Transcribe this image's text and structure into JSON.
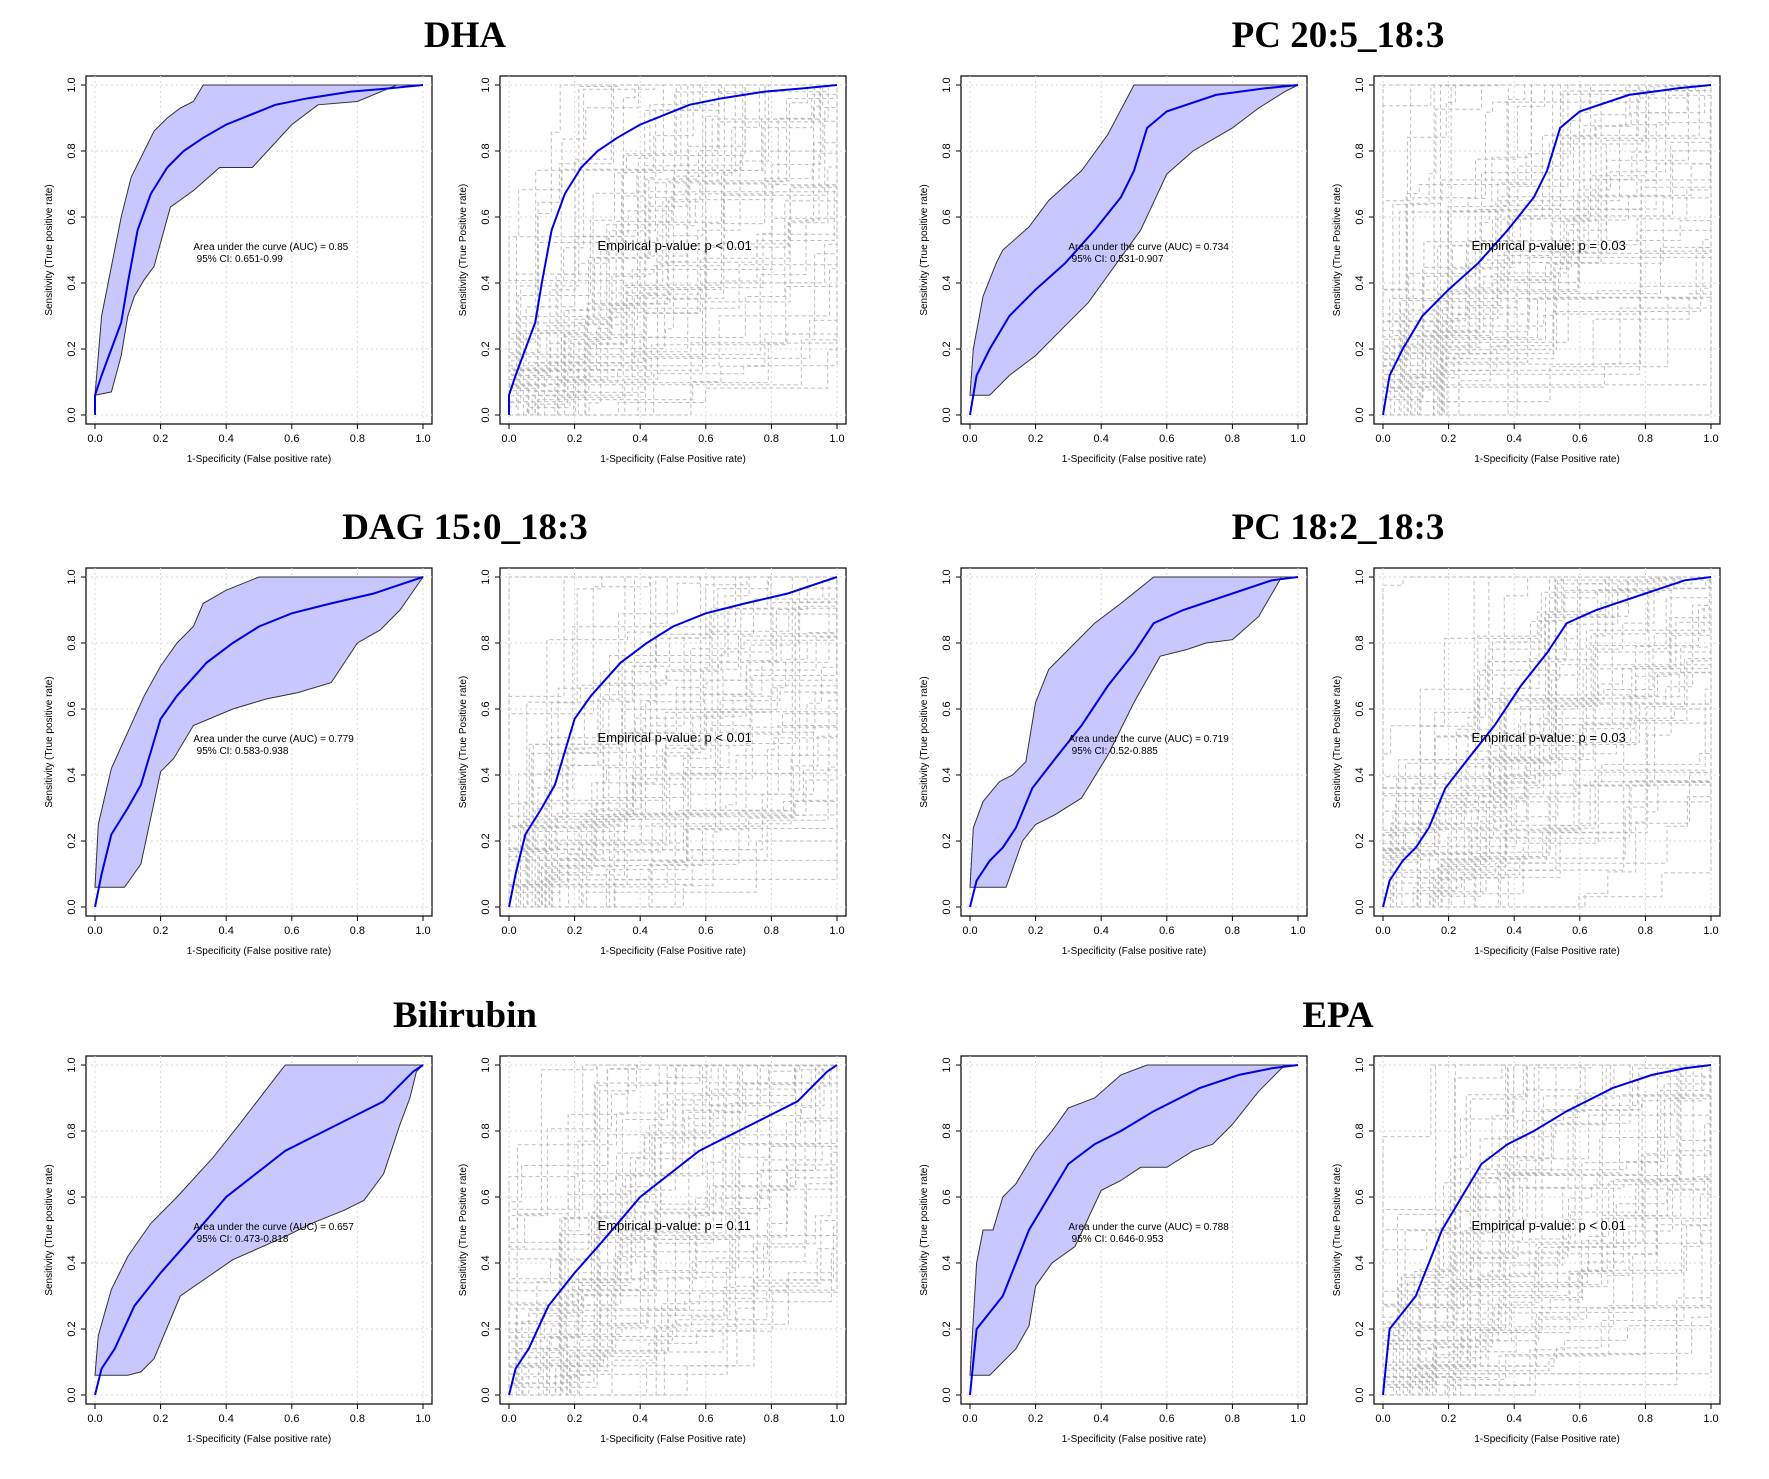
{
  "figure": {
    "axes_text": {
      "roc_ylabel": "Sensitivity (True positive rate)",
      "roc_xlabel": "1-Specificity (False positive rate)",
      "perm_ylabel": "Sensitivity (True Positive rate)",
      "perm_xlabel": "1-Specificity (False Positive rate)",
      "ticks": [
        "0.0",
        "0.2",
        "0.4",
        "0.6",
        "0.8",
        "1.0"
      ]
    },
    "colors": {
      "curve": "#0000e6",
      "band": "#c8c8ff",
      "band_edge": "#333333",
      "perm": "#b4b4b4",
      "grid": "#d9d9d9"
    }
  },
  "groups": [
    {
      "title": "DHA"
    },
    {
      "title": "PC 20:5_18:3"
    },
    {
      "title": "DAG 15:0_18:3"
    },
    {
      "title": "PC 18:2_18:3"
    },
    {
      "title": "Bilirubin"
    },
    {
      "title": "EPA"
    }
  ],
  "chart_data": [
    {
      "type": "line",
      "metabolite": "DHA",
      "roc": {
        "auc_text": "Area under the curve (AUC) = 0.85",
        "ci_text": "95% CI: 0.651-0.99",
        "fpr": [
          0,
          0,
          0.02,
          0.05,
          0.08,
          0.1,
          0.13,
          0.17,
          0.22,
          0.27,
          0.33,
          0.4,
          0.5,
          0.55,
          0.65,
          0.78,
          0.9,
          1.0
        ],
        "tpr": [
          0,
          0.06,
          0.12,
          0.2,
          0.28,
          0.4,
          0.56,
          0.67,
          0.75,
          0.8,
          0.84,
          0.88,
          0.92,
          0.94,
          0.96,
          0.98,
          0.99,
          1.0
        ],
        "ci_upper": [
          [
            0,
            0.06
          ],
          [
            0.02,
            0.3
          ],
          [
            0.05,
            0.45
          ],
          [
            0.08,
            0.6
          ],
          [
            0.11,
            0.72
          ],
          [
            0.15,
            0.8
          ],
          [
            0.18,
            0.86
          ],
          [
            0.22,
            0.9
          ],
          [
            0.26,
            0.93
          ],
          [
            0.3,
            0.95
          ],
          [
            0.33,
            1.0
          ],
          [
            1.0,
            1.0
          ]
        ],
        "ci_lower": [
          [
            0,
            0.06
          ],
          [
            0.05,
            0.07
          ],
          [
            0.08,
            0.18
          ],
          [
            0.1,
            0.3
          ],
          [
            0.12,
            0.36
          ],
          [
            0.15,
            0.41
          ],
          [
            0.18,
            0.45
          ],
          [
            0.23,
            0.63
          ],
          [
            0.3,
            0.68
          ],
          [
            0.38,
            0.75
          ],
          [
            0.48,
            0.75
          ],
          [
            0.6,
            0.88
          ],
          [
            0.68,
            0.94
          ],
          [
            0.8,
            0.95
          ],
          [
            0.92,
            1.0
          ],
          [
            1.0,
            1.0
          ]
        ]
      },
      "permutation": {
        "pvalue_text": "Empirical p-value:  p < 0.01"
      }
    },
    {
      "type": "line",
      "metabolite": "PC 20:5_18:3",
      "roc": {
        "auc_text": "Area under the curve (AUC) = 0.734",
        "ci_text": "95% CI: 0.531-0.907",
        "fpr": [
          0,
          0.02,
          0.06,
          0.12,
          0.2,
          0.29,
          0.38,
          0.46,
          0.5,
          0.54,
          0.6,
          0.75,
          0.9,
          1.0
        ],
        "tpr": [
          0,
          0.12,
          0.2,
          0.3,
          0.38,
          0.46,
          0.56,
          0.66,
          0.74,
          0.87,
          0.92,
          0.97,
          0.99,
          1.0
        ],
        "ci_upper": [
          [
            0,
            0.06
          ],
          [
            0.01,
            0.2
          ],
          [
            0.04,
            0.36
          ],
          [
            0.08,
            0.46
          ],
          [
            0.1,
            0.5
          ],
          [
            0.18,
            0.57
          ],
          [
            0.24,
            0.65
          ],
          [
            0.34,
            0.74
          ],
          [
            0.42,
            0.85
          ],
          [
            0.5,
            1.0
          ],
          [
            1.0,
            1.0
          ]
        ],
        "ci_lower": [
          [
            0,
            0.06
          ],
          [
            0.06,
            0.06
          ],
          [
            0.12,
            0.12
          ],
          [
            0.2,
            0.18
          ],
          [
            0.28,
            0.26
          ],
          [
            0.36,
            0.34
          ],
          [
            0.44,
            0.45
          ],
          [
            0.52,
            0.56
          ],
          [
            0.6,
            0.73
          ],
          [
            0.68,
            0.8
          ],
          [
            0.8,
            0.87
          ],
          [
            0.88,
            0.93
          ],
          [
            0.96,
            0.98
          ],
          [
            1.0,
            1.0
          ]
        ]
      },
      "permutation": {
        "pvalue_text": "Empirical p-value:  p = 0.03"
      }
    },
    {
      "type": "line",
      "metabolite": "DAG 15:0_18:3",
      "roc": {
        "auc_text": "Area under the curve (AUC) = 0.779",
        "ci_text": "95% CI: 0.583-0.938",
        "fpr": [
          0,
          0.02,
          0.05,
          0.1,
          0.14,
          0.2,
          0.25,
          0.34,
          0.42,
          0.5,
          0.6,
          0.72,
          0.85,
          0.94,
          1.0
        ],
        "tpr": [
          0,
          0.1,
          0.22,
          0.3,
          0.37,
          0.57,
          0.64,
          0.74,
          0.8,
          0.85,
          0.89,
          0.92,
          0.95,
          0.98,
          1.0
        ],
        "ci_upper": [
          [
            0,
            0.06
          ],
          [
            0.01,
            0.25
          ],
          [
            0.05,
            0.42
          ],
          [
            0.1,
            0.53
          ],
          [
            0.15,
            0.64
          ],
          [
            0.2,
            0.73
          ],
          [
            0.25,
            0.8
          ],
          [
            0.3,
            0.85
          ],
          [
            0.33,
            0.92
          ],
          [
            0.4,
            0.96
          ],
          [
            0.5,
            1.0
          ],
          [
            1.0,
            1.0
          ]
        ],
        "ci_lower": [
          [
            0,
            0.06
          ],
          [
            0.09,
            0.06
          ],
          [
            0.14,
            0.13
          ],
          [
            0.2,
            0.41
          ],
          [
            0.24,
            0.45
          ],
          [
            0.3,
            0.55
          ],
          [
            0.42,
            0.6
          ],
          [
            0.52,
            0.63
          ],
          [
            0.62,
            0.65
          ],
          [
            0.72,
            0.68
          ],
          [
            0.8,
            0.8
          ],
          [
            0.87,
            0.84
          ],
          [
            0.93,
            0.9
          ],
          [
            1.0,
            1.0
          ]
        ]
      },
      "permutation": {
        "pvalue_text": "Empirical p-value:  p < 0.01"
      }
    },
    {
      "type": "line",
      "metabolite": "PC 18:2_18:3",
      "roc": {
        "auc_text": "Area under the curve (AUC) = 0.719",
        "ci_text": "95% CI: 0.52-0.885",
        "fpr": [
          0,
          0.02,
          0.06,
          0.1,
          0.14,
          0.19,
          0.26,
          0.34,
          0.42,
          0.5,
          0.56,
          0.65,
          0.8,
          0.92,
          1.0
        ],
        "tpr": [
          0,
          0.08,
          0.14,
          0.18,
          0.24,
          0.36,
          0.45,
          0.55,
          0.67,
          0.77,
          0.86,
          0.9,
          0.95,
          0.99,
          1.0
        ],
        "ci_upper": [
          [
            0,
            0.06
          ],
          [
            0.01,
            0.24
          ],
          [
            0.04,
            0.32
          ],
          [
            0.09,
            0.38
          ],
          [
            0.13,
            0.4
          ],
          [
            0.17,
            0.44
          ],
          [
            0.2,
            0.62
          ],
          [
            0.24,
            0.72
          ],
          [
            0.3,
            0.78
          ],
          [
            0.38,
            0.86
          ],
          [
            0.46,
            0.92
          ],
          [
            0.56,
            1.0
          ],
          [
            1.0,
            1.0
          ]
        ],
        "ci_lower": [
          [
            0,
            0.06
          ],
          [
            0.11,
            0.06
          ],
          [
            0.16,
            0.2
          ],
          [
            0.2,
            0.25
          ],
          [
            0.26,
            0.28
          ],
          [
            0.34,
            0.33
          ],
          [
            0.42,
            0.46
          ],
          [
            0.5,
            0.62
          ],
          [
            0.58,
            0.76
          ],
          [
            0.66,
            0.78
          ],
          [
            0.72,
            0.8
          ],
          [
            0.8,
            0.81
          ],
          [
            0.88,
            0.88
          ],
          [
            0.95,
            1.0
          ],
          [
            1.0,
            1.0
          ]
        ]
      },
      "permutation": {
        "pvalue_text": "Empirical p-value:  p = 0.03"
      }
    },
    {
      "type": "line",
      "metabolite": "Bilirubin",
      "roc": {
        "auc_text": "Area under the curve (AUC) = 0.657",
        "ci_text": "95% CI: 0.473-0.818",
        "fpr": [
          0,
          0.02,
          0.06,
          0.12,
          0.2,
          0.28,
          0.4,
          0.58,
          0.7,
          0.8,
          0.88,
          0.93,
          0.97,
          1.0
        ],
        "tpr": [
          0,
          0.08,
          0.14,
          0.27,
          0.37,
          0.46,
          0.6,
          0.74,
          0.8,
          0.85,
          0.89,
          0.94,
          0.98,
          1.0
        ],
        "ci_upper": [
          [
            0,
            0.06
          ],
          [
            0.01,
            0.18
          ],
          [
            0.05,
            0.32
          ],
          [
            0.1,
            0.42
          ],
          [
            0.17,
            0.52
          ],
          [
            0.25,
            0.6
          ],
          [
            0.36,
            0.72
          ],
          [
            0.44,
            0.82
          ],
          [
            0.58,
            1.0
          ],
          [
            1.0,
            1.0
          ]
        ],
        "ci_lower": [
          [
            0,
            0.06
          ],
          [
            0.1,
            0.06
          ],
          [
            0.14,
            0.07
          ],
          [
            0.18,
            0.11
          ],
          [
            0.26,
            0.3
          ],
          [
            0.42,
            0.41
          ],
          [
            0.58,
            0.48
          ],
          [
            0.66,
            0.52
          ],
          [
            0.76,
            0.56
          ],
          [
            0.82,
            0.59
          ],
          [
            0.88,
            0.67
          ],
          [
            0.93,
            0.82
          ],
          [
            0.96,
            0.9
          ],
          [
            0.98,
            0.98
          ],
          [
            1.0,
            1.0
          ]
        ]
      },
      "permutation": {
        "pvalue_text": "Empirical p-value:  p = 0.11"
      }
    },
    {
      "type": "line",
      "metabolite": "EPA",
      "roc": {
        "auc_text": "Area under the curve (AUC) = 0.788",
        "ci_text": "95% CI: 0.646-0.953",
        "fpr": [
          0,
          0.02,
          0.06,
          0.1,
          0.14,
          0.18,
          0.24,
          0.3,
          0.38,
          0.46,
          0.56,
          0.7,
          0.82,
          0.92,
          1.0
        ],
        "tpr": [
          0,
          0.2,
          0.25,
          0.3,
          0.4,
          0.5,
          0.6,
          0.7,
          0.76,
          0.8,
          0.86,
          0.93,
          0.97,
          0.99,
          1.0
        ],
        "ci_upper": [
          [
            0,
            0.06
          ],
          [
            0.02,
            0.4
          ],
          [
            0.04,
            0.5
          ],
          [
            0.07,
            0.5
          ],
          [
            0.1,
            0.6
          ],
          [
            0.14,
            0.64
          ],
          [
            0.2,
            0.74
          ],
          [
            0.25,
            0.8
          ],
          [
            0.3,
            0.87
          ],
          [
            0.38,
            0.9
          ],
          [
            0.46,
            0.97
          ],
          [
            0.54,
            1.0
          ],
          [
            1.0,
            1.0
          ]
        ],
        "ci_lower": [
          [
            0,
            0.06
          ],
          [
            0.06,
            0.06
          ],
          [
            0.1,
            0.1
          ],
          [
            0.14,
            0.14
          ],
          [
            0.18,
            0.21
          ],
          [
            0.2,
            0.33
          ],
          [
            0.25,
            0.4
          ],
          [
            0.32,
            0.45
          ],
          [
            0.4,
            0.62
          ],
          [
            0.46,
            0.65
          ],
          [
            0.52,
            0.69
          ],
          [
            0.6,
            0.69
          ],
          [
            0.68,
            0.74
          ],
          [
            0.74,
            0.76
          ],
          [
            0.8,
            0.82
          ],
          [
            0.88,
            0.92
          ],
          [
            0.96,
            1.0
          ],
          [
            1.0,
            1.0
          ]
        ]
      },
      "permutation": {
        "pvalue_text": "Empirical p-value:  p < 0.01"
      }
    }
  ]
}
